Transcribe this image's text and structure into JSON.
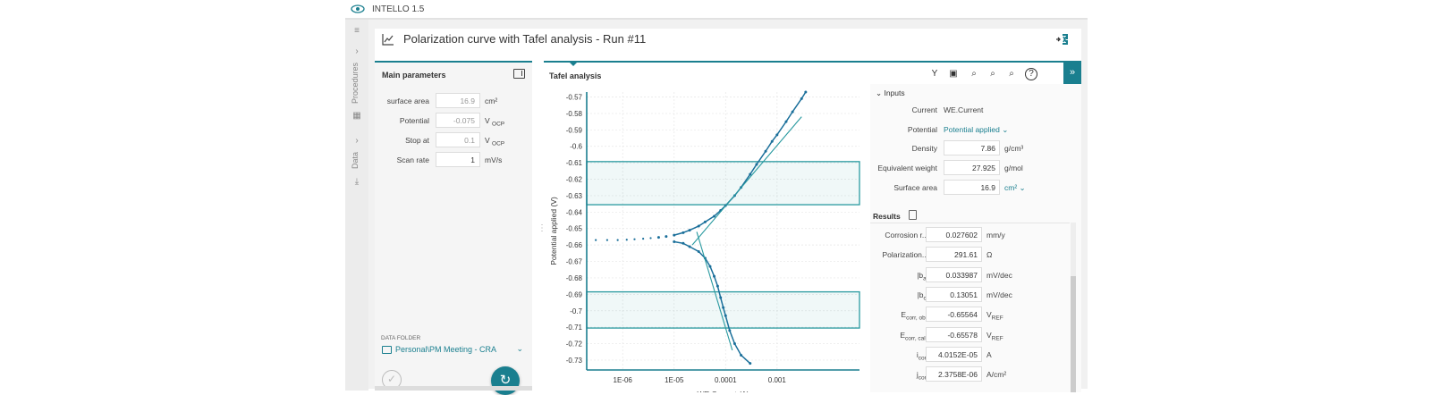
{
  "app": {
    "title": "INTELLO 1.5"
  },
  "rail": {
    "procedures_label": "Procedures",
    "data_label": "Data"
  },
  "header": {
    "title": "Polarization curve with Tafel analysis - Run #11"
  },
  "params": {
    "title": "Main parameters",
    "rows": [
      {
        "label": "surface area",
        "value": "16.9",
        "unit": "cm²",
        "unit_sub": ""
      },
      {
        "label": "Potential",
        "value": "-0.075",
        "unit": "V",
        "unit_sub": "OCP"
      },
      {
        "label": "Stop at",
        "value": "0.1",
        "unit": "V",
        "unit_sub": "OCP"
      },
      {
        "label": "Scan rate",
        "value": "1",
        "unit": "mV/s",
        "unit_sub": ""
      }
    ]
  },
  "datafolder": {
    "label": "DATA FOLDER",
    "value": "Personal\\PM Meeting - CRA"
  },
  "analysis": {
    "title": "Tafel analysis"
  },
  "inputs": {
    "title": "Inputs",
    "current_label": "Current",
    "current_value": "WE.Current",
    "potential_label": "Potential",
    "potential_value": "Potential applied",
    "density_label": "Density",
    "density_value": "7.86",
    "density_unit": "g/cm³",
    "eqw_label": "Equivalent weight",
    "eqw_value": "27.925",
    "eqw_unit": "g/mol",
    "area_label": "Surface area",
    "area_value": "16.9",
    "area_unit": "cm²"
  },
  "results": {
    "title": "Results",
    "rows": [
      {
        "label": "Corrosion r...",
        "sub": "",
        "value": "0.027602",
        "unit": "mm/y",
        "unit_sub": ""
      },
      {
        "label": "Polarization...",
        "sub": "",
        "value": "291.61",
        "unit": "Ω",
        "unit_sub": ""
      },
      {
        "label": "|b",
        "sub": "a",
        "label_end": "|",
        "value": "0.033987",
        "unit": "mV/dec",
        "unit_sub": ""
      },
      {
        "label": "|b",
        "sub": "c",
        "label_end": "|",
        "value": "0.13051",
        "unit": "mV/dec",
        "unit_sub": ""
      },
      {
        "label": "E",
        "sub": "corr, obs",
        "value": "-0.65564",
        "unit": "V",
        "unit_sub": "REF"
      },
      {
        "label": "E",
        "sub": "corr, calc",
        "value": "-0.65578",
        "unit": "V",
        "unit_sub": "REF"
      },
      {
        "label": "i",
        "sub": "corr",
        "value": "4.0152E-05",
        "unit": "A",
        "unit_sub": ""
      },
      {
        "label": "j",
        "sub": "corr",
        "value": "2.3758E-06",
        "unit": "A/cm²",
        "unit_sub": ""
      }
    ]
  },
  "colors": {
    "accent": "#1a7f8f",
    "plot_line": "#1a6f9a",
    "fit_line": "#2a9aa0"
  },
  "icons": {
    "toolbar": [
      "filter-icon",
      "save-icon",
      "zoom-icon",
      "zoom-out-icon",
      "zoom-in-icon",
      "help-icon"
    ]
  },
  "chart_data": {
    "type": "scatter",
    "xlabel": "WE.Current (A)",
    "ylabel": "Potential applied (V)",
    "x_scale": "log",
    "xlim": [
      2e-07,
      0.04
    ],
    "ylim": [
      -0.736,
      -0.567
    ],
    "x_ticks": [
      {
        "value": 1e-06,
        "label": "1E-06"
      },
      {
        "value": 1e-05,
        "label": "1E-05"
      },
      {
        "value": 0.0001,
        "label": "0.0001"
      },
      {
        "value": 0.001,
        "label": "0.001"
      }
    ],
    "y_ticks": [
      -0.57,
      -0.58,
      -0.59,
      -0.6,
      -0.61,
      -0.62,
      -0.63,
      -0.64,
      -0.65,
      -0.66,
      -0.67,
      -0.68,
      -0.69,
      -0.7,
      -0.71,
      -0.72,
      -0.73
    ],
    "grid": true,
    "series": [
      {
        "values": [
          [
            3e-07,
            -0.657
          ],
          [
            5e-07,
            -0.657
          ],
          [
            8e-07,
            -0.657
          ],
          [
            1.2e-06,
            -0.6568
          ],
          [
            1.7e-06,
            -0.6565
          ],
          [
            2.5e-06,
            -0.6562
          ],
          [
            3.5e-06,
            -0.6558
          ],
          [
            5e-06,
            -0.6554
          ],
          [
            7e-06,
            -0.6548
          ],
          [
            1e-05,
            -0.654
          ],
          [
            1.5e-05,
            -0.6525
          ],
          [
            2e-05,
            -0.651
          ],
          [
            3e-05,
            -0.6485
          ],
          [
            4e-05,
            -0.646
          ],
          [
            6e-05,
            -0.6425
          ],
          [
            8e-05,
            -0.639
          ],
          [
            0.0001,
            -0.636
          ],
          [
            0.00015,
            -0.63
          ],
          [
            0.0002,
            -0.625
          ],
          [
            0.0003,
            -0.617
          ],
          [
            0.0004,
            -0.611
          ],
          [
            0.0006,
            -0.603
          ],
          [
            0.0008,
            -0.597
          ],
          [
            0.001,
            -0.593
          ],
          [
            0.0015,
            -0.585
          ],
          [
            0.002,
            -0.579
          ],
          [
            0.003,
            -0.571
          ],
          [
            0.0036,
            -0.567
          ]
        ]
      },
      {
        "values": [
          [
            1e-05,
            -0.658
          ],
          [
            1.5e-05,
            -0.659
          ],
          [
            2e-05,
            -0.661
          ],
          [
            3e-05,
            -0.664
          ],
          [
            4e-05,
            -0.668
          ],
          [
            5e-05,
            -0.673
          ],
          [
            6e-05,
            -0.679
          ],
          [
            7e-05,
            -0.685
          ],
          [
            8e-05,
            -0.692
          ],
          [
            9e-05,
            -0.698
          ],
          [
            0.0001,
            -0.703
          ],
          [
            0.00012,
            -0.712
          ],
          [
            0.00015,
            -0.72
          ],
          [
            0.0002,
            -0.727
          ],
          [
            0.0003,
            -0.732
          ]
        ]
      }
    ],
    "fit_lines": [
      {
        "from": [
          2.25e-05,
          -0.66
        ],
        "to": [
          0.003,
          -0.582
        ]
      },
      {
        "from": [
          2.75e-05,
          -0.652
        ],
        "to": [
          0.000135,
          -0.724
        ]
      }
    ],
    "regions": [
      {
        "y": [
          -0.6355,
          -0.6093
        ]
      },
      {
        "y": [
          -0.7105,
          -0.6885
        ]
      }
    ]
  }
}
